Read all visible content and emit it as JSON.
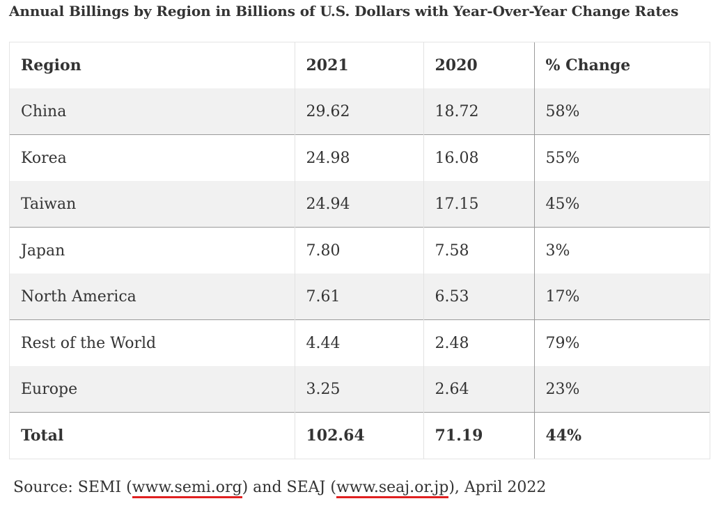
{
  "title": "Annual Billings by Region in Billions of U.S. Dollars with Year-Over-Year Change Rates",
  "table": {
    "headers": [
      "Region",
      "2021",
      "2020",
      "% Change"
    ],
    "rows": [
      [
        "China",
        "29.62",
        "18.72",
        "58%"
      ],
      [
        "Korea",
        "24.98",
        "16.08",
        "55%"
      ],
      [
        "Taiwan",
        "24.94",
        "17.15",
        "45%"
      ],
      [
        "Japan",
        "7.80",
        "7.58",
        "3%"
      ],
      [
        "North America",
        "7.61",
        "6.53",
        "17%"
      ],
      [
        "Rest of the World",
        "4.44",
        "2.48",
        "79%"
      ],
      [
        "Europe",
        "3.25",
        "2.64",
        "23%"
      ]
    ],
    "total": [
      "Total",
      "102.64",
      "71.19",
      "44%"
    ]
  },
  "source": {
    "prefix": "Source: SEMI (",
    "link1": "www.semi.org",
    "middle": ") and SEAJ (",
    "link2": "www.seaj.or.jp",
    "suffix": "), April 2022",
    "link_underline_color": "#e02020"
  }
}
